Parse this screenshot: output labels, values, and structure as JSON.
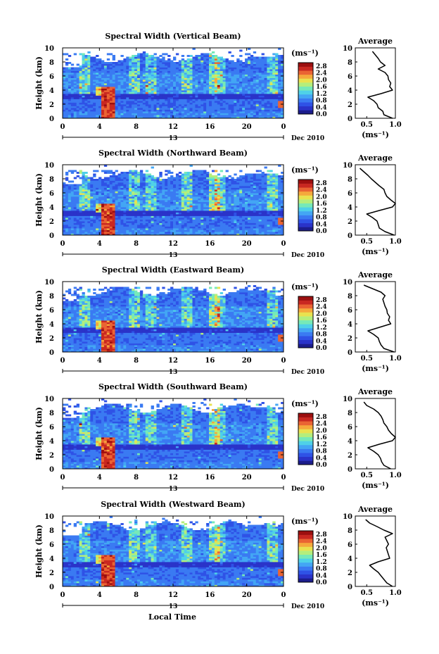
{
  "figure": {
    "xlabel_bottom": "Local Time",
    "cbar_unit": "(ms⁻¹)",
    "date_label": "Dec 2010",
    "day_label": "13",
    "avg_title": "Average"
  },
  "colors": {
    "colormap": [
      "#1c1d8c",
      "#2a33c9",
      "#2f52e6",
      "#3a7af2",
      "#43a6f4",
      "#4fd1e8",
      "#76e9b8",
      "#b4ee7c",
      "#e9e24f",
      "#f5a93c",
      "#ea6433",
      "#c92821",
      "#9c0f0f"
    ],
    "empty": "#ffffff"
  },
  "chart_data": [
    {
      "type": "heatmap",
      "title": "Spectral Width (Vertical Beam)",
      "ylabel": "Height (km)",
      "x_ticks": [
        "0",
        "4",
        "8",
        "12",
        "16",
        "20",
        "0"
      ],
      "y_ticks": [
        "0",
        "2",
        "4",
        "6",
        "8",
        "10"
      ],
      "xlim": [
        0,
        24
      ],
      "ylim": [
        0,
        10
      ],
      "colorbar_ticks": [
        "0.0",
        "0.4",
        "0.8",
        "1.2",
        "1.6",
        "2.0",
        "2.4",
        "2.8"
      ],
      "colorbar_range": [
        0,
        3.0
      ],
      "profile": {
        "title": "Average",
        "xlabel": "(ms⁻¹)",
        "x_ticks": [
          "0.5",
          "1.0"
        ],
        "x_tick_values": [
          0.5,
          1.0
        ],
        "xlim": [
          0.3,
          1.0
        ],
        "y_ticks": [
          "0",
          "2",
          "4",
          "6",
          "8",
          "10"
        ],
        "heights": [
          0.0,
          0.5,
          1.0,
          1.5,
          2.0,
          2.5,
          3.0,
          3.5,
          4.0,
          4.5,
          5.0,
          5.5,
          6.0,
          6.5,
          7.0,
          7.5,
          8.0,
          8.5,
          9.0,
          9.5
        ],
        "values": [
          0.95,
          0.8,
          0.78,
          0.7,
          0.68,
          0.62,
          0.52,
          0.75,
          0.95,
          0.9,
          0.92,
          0.88,
          0.87,
          0.82,
          0.7,
          0.82,
          0.74,
          0.7,
          0.65,
          0.6
        ]
      }
    },
    {
      "type": "heatmap",
      "title": "Spectral Width (Northward Beam)",
      "ylabel": "Height (km)",
      "x_ticks": [
        "0",
        "4",
        "8",
        "12",
        "16",
        "20",
        "0"
      ],
      "y_ticks": [
        "0",
        "2",
        "4",
        "6",
        "8",
        "10"
      ],
      "xlim": [
        0,
        24
      ],
      "ylim": [
        0,
        10
      ],
      "colorbar_ticks": [
        "0.0",
        "0.4",
        "0.8",
        "1.2",
        "1.6",
        "2.0",
        "2.4",
        "2.8"
      ],
      "colorbar_range": [
        0,
        3.0
      ],
      "profile": {
        "title": "Average",
        "xlabel": "(ms⁻¹)",
        "x_ticks": [
          "0.5",
          "1.0"
        ],
        "x_tick_values": [
          0.5,
          1.0
        ],
        "xlim": [
          0.3,
          1.0
        ],
        "y_ticks": [
          "0",
          "2",
          "4",
          "6",
          "8",
          "10"
        ],
        "heights": [
          0.0,
          0.5,
          1.0,
          1.5,
          2.0,
          2.5,
          3.0,
          3.5,
          4.0,
          4.5,
          5.0,
          5.5,
          6.0,
          6.5,
          7.0,
          7.5,
          8.0,
          8.5,
          9.0,
          9.5
        ],
        "values": [
          0.98,
          0.82,
          0.72,
          0.7,
          0.68,
          0.6,
          0.5,
          0.72,
          0.95,
          1.0,
          0.92,
          0.85,
          0.82,
          0.8,
          0.72,
          0.65,
          0.58,
          0.52,
          0.45,
          0.38
        ]
      }
    },
    {
      "type": "heatmap",
      "title": "Spectral Width (Eastward Beam)",
      "ylabel": "Height (km)",
      "x_ticks": [
        "0",
        "4",
        "8",
        "12",
        "16",
        "20",
        "0"
      ],
      "y_ticks": [
        "0",
        "2",
        "4",
        "6",
        "8",
        "10"
      ],
      "xlim": [
        0,
        24
      ],
      "ylim": [
        0,
        10
      ],
      "colorbar_ticks": [
        "0.0",
        "0.4",
        "0.8",
        "1.2",
        "1.6",
        "2.0",
        "2.4",
        "2.8"
      ],
      "colorbar_range": [
        0,
        3.0
      ],
      "profile": {
        "title": "Average",
        "xlabel": "(ms⁻¹)",
        "x_ticks": [
          "0.5",
          "1.0"
        ],
        "x_tick_values": [
          0.5,
          1.0
        ],
        "xlim": [
          0.3,
          1.0
        ],
        "y_ticks": [
          "0",
          "2",
          "4",
          "6",
          "8",
          "10"
        ],
        "heights": [
          0.0,
          0.5,
          1.0,
          1.5,
          2.0,
          2.5,
          3.0,
          3.5,
          4.0,
          4.5,
          5.0,
          5.5,
          6.0,
          6.5,
          7.0,
          7.5,
          8.0,
          8.5,
          9.0,
          9.5
        ],
        "values": [
          0.98,
          0.8,
          0.75,
          0.72,
          0.7,
          0.62,
          0.52,
          0.72,
          0.92,
          0.88,
          0.9,
          0.86,
          0.85,
          0.82,
          0.8,
          0.78,
          0.82,
          0.75,
          0.6,
          0.45
        ]
      }
    },
    {
      "type": "heatmap",
      "title": "Spectral Width (Southward Beam)",
      "ylabel": "Height (km)",
      "x_ticks": [
        "0",
        "4",
        "8",
        "12",
        "16",
        "20",
        "0"
      ],
      "y_ticks": [
        "0",
        "2",
        "4",
        "6",
        "8",
        "10"
      ],
      "xlim": [
        0,
        24
      ],
      "ylim": [
        0,
        10
      ],
      "colorbar_ticks": [
        "0.0",
        "0.4",
        "0.8",
        "1.2",
        "1.6",
        "2.0",
        "2.4",
        "2.8"
      ],
      "colorbar_range": [
        0,
        3.0
      ],
      "profile": {
        "title": "Average",
        "xlabel": "(ms⁻¹)",
        "x_ticks": [
          "0.5",
          "1.0"
        ],
        "x_tick_values": [
          0.5,
          1.0
        ],
        "xlim": [
          0.3,
          1.0
        ],
        "y_ticks": [
          "0",
          "2",
          "4",
          "6",
          "8",
          "10"
        ],
        "heights": [
          0.0,
          0.5,
          1.0,
          1.5,
          2.0,
          2.5,
          3.0,
          3.5,
          4.0,
          4.5,
          5.0,
          5.5,
          6.0,
          6.5,
          7.0,
          7.5,
          8.0,
          8.5,
          9.0,
          9.5
        ],
        "values": [
          0.92,
          0.8,
          0.76,
          0.74,
          0.7,
          0.62,
          0.52,
          0.72,
          0.95,
          1.0,
          0.93,
          0.88,
          0.85,
          0.8,
          0.78,
          0.75,
          0.7,
          0.62,
          0.5,
          0.45
        ]
      }
    },
    {
      "type": "heatmap",
      "title": "Spectral Width (Westward Beam)",
      "ylabel": "Height (km)",
      "x_ticks": [
        "0",
        "4",
        "8",
        "12",
        "16",
        "20",
        "0"
      ],
      "y_ticks": [
        "0",
        "2",
        "4",
        "6",
        "8",
        "10"
      ],
      "xlim": [
        0,
        24
      ],
      "ylim": [
        0,
        10
      ],
      "colorbar_ticks": [
        "0.0",
        "0.4",
        "0.8",
        "1.2",
        "1.6",
        "2.0",
        "2.4",
        "2.8"
      ],
      "colorbar_range": [
        0,
        3.0
      ],
      "profile": {
        "title": "Average",
        "xlabel": "(ms⁻¹)",
        "x_ticks": [
          "0.5",
          "1.0"
        ],
        "x_tick_values": [
          0.5,
          1.0
        ],
        "xlim": [
          0.3,
          1.0
        ],
        "y_ticks": [
          "0",
          "2",
          "4",
          "6",
          "8",
          "10"
        ],
        "heights": [
          0.0,
          0.5,
          1.0,
          1.5,
          2.0,
          2.5,
          3.0,
          3.5,
          4.0,
          4.5,
          5.0,
          5.5,
          6.0,
          6.5,
          7.0,
          7.5,
          8.0,
          8.5,
          9.0,
          9.5
        ],
        "values": [
          0.95,
          0.85,
          0.8,
          0.75,
          0.7,
          0.62,
          0.55,
          0.7,
          0.9,
          0.88,
          0.86,
          0.84,
          0.88,
          0.85,
          0.82,
          0.95,
          0.8,
          0.68,
          0.55,
          0.48
        ]
      }
    }
  ]
}
